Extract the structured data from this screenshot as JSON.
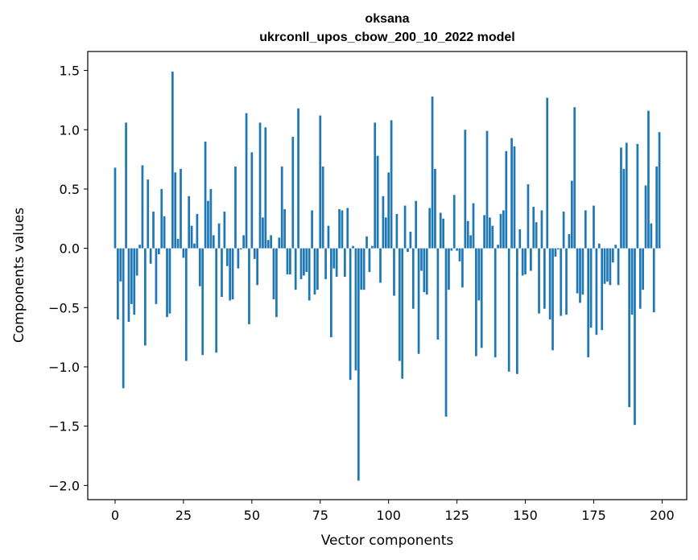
{
  "chart_data": {
    "type": "bar",
    "title": "oksana",
    "subtitle": "ukrconll_upos_cbow_200_10_2022 model",
    "xlabel": "Vector components",
    "ylabel": "Components values",
    "xlim": [
      -10,
      209
    ],
    "ylim": [
      -2.12,
      1.66
    ],
    "x_ticks": [
      0,
      25,
      50,
      75,
      100,
      125,
      150,
      175,
      200
    ],
    "y_ticks": [
      -2.0,
      -1.5,
      -1.0,
      -0.5,
      0.0,
      0.5,
      1.0,
      1.5
    ],
    "y_tick_labels": [
      "−2.0",
      "−1.5",
      "−1.0",
      "−0.5",
      "0.0",
      "0.5",
      "1.0",
      "1.5"
    ],
    "bar_color": "#1f77b4",
    "grid": false,
    "values": [
      0.68,
      -0.6,
      -0.28,
      -1.18,
      1.06,
      -0.62,
      -0.47,
      -0.56,
      -0.23,
      0.03,
      0.7,
      -0.82,
      0.58,
      -0.13,
      0.31,
      -0.47,
      -0.05,
      0.5,
      0.27,
      -0.58,
      -0.55,
      1.49,
      0.64,
      0.08,
      0.67,
      -0.08,
      -0.95,
      0.44,
      0.19,
      0.04,
      0.29,
      -0.32,
      -0.9,
      0.9,
      0.4,
      0.5,
      0.11,
      -0.88,
      0.21,
      -0.41,
      0.31,
      -0.15,
      -0.44,
      -0.43,
      0.69,
      -0.17,
      -0.01,
      0.11,
      1.14,
      -0.64,
      0.81,
      -0.09,
      -0.31,
      1.06,
      0.26,
      1.02,
      0.07,
      0.11,
      -0.43,
      -0.58,
      0.09,
      0.69,
      0.33,
      -0.22,
      -0.22,
      0.94,
      -0.35,
      1.18,
      -0.26,
      -0.23,
      -0.2,
      -0.44,
      0.32,
      -0.39,
      -0.35,
      1.12,
      0.69,
      -0.26,
      0.19,
      -0.75,
      -0.17,
      -0.24,
      0.33,
      0.32,
      -0.24,
      0.34,
      -1.11,
      0.02,
      -1.03,
      -1.96,
      -0.35,
      -0.35,
      0.1,
      -0.2,
      0.02,
      1.06,
      0.78,
      -0.29,
      0.44,
      0.26,
      0.64,
      1.08,
      -0.4,
      0.29,
      -0.95,
      -1.1,
      0.36,
      -0.03,
      0.14,
      -0.51,
      0.4,
      -0.89,
      -0.19,
      -0.37,
      -0.39,
      0.34,
      1.28,
      0.67,
      -0.77,
      0.3,
      0.25,
      -1.42,
      -0.35,
      -0.02,
      0.45,
      -0.02,
      -0.11,
      -0.33,
      1.0,
      0.23,
      0.11,
      0.38,
      -0.91,
      -0.44,
      -0.84,
      0.28,
      0.99,
      0.26,
      0.19,
      -0.92,
      0.03,
      0.29,
      0.32,
      0.82,
      -1.04,
      0.93,
      0.86,
      -1.06,
      0.16,
      -0.23,
      -0.22,
      0.54,
      -0.19,
      0.35,
      0.22,
      -0.55,
      0.32,
      -0.51,
      1.27,
      -0.6,
      -0.86,
      -0.07,
      -0.01,
      -0.57,
      0.31,
      -0.56,
      0.12,
      0.57,
      1.19,
      -0.38,
      -0.46,
      -0.39,
      0.32,
      -0.92,
      -0.67,
      0.36,
      -0.73,
      0.04,
      -0.69,
      -0.3,
      -0.28,
      -0.31,
      -0.12,
      0.03,
      -0.31,
      0.85,
      0.67,
      0.89,
      -1.34,
      -0.56,
      -1.49,
      0.88,
      -0.51,
      -0.35,
      0.53,
      1.16,
      0.21,
      -0.54,
      0.69,
      0.98
    ]
  }
}
